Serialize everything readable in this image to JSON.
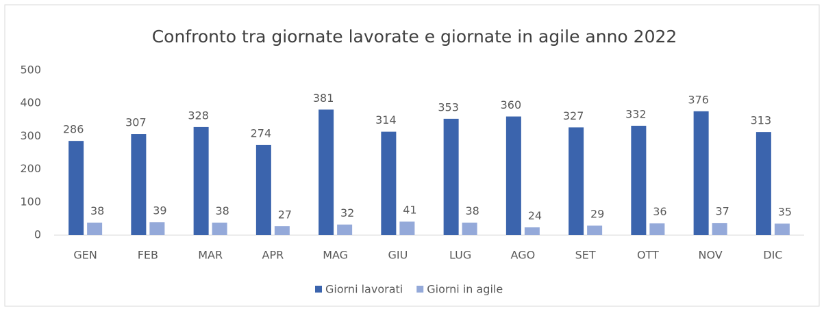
{
  "chart_data": {
    "type": "bar",
    "title": "Confronto tra giornate lavorate e giornate in agile anno 2022",
    "categories": [
      "GEN",
      "FEB",
      "MAR",
      "APR",
      "MAG",
      "GIU",
      "LUG",
      "AGO",
      "SET",
      "OTT",
      "NOV",
      "DIC"
    ],
    "series": [
      {
        "name": "Giorni lavorati",
        "color": "#3b64ad",
        "values": [
          286,
          307,
          328,
          274,
          381,
          314,
          353,
          360,
          327,
          332,
          376,
          313
        ]
      },
      {
        "name": "Giorni in agile",
        "color": "#94a9d9",
        "values": [
          38,
          39,
          38,
          27,
          32,
          41,
          38,
          24,
          29,
          36,
          37,
          35
        ]
      }
    ],
    "ylim": [
      0,
      500
    ],
    "yticks": [
      0,
      100,
      200,
      300,
      400,
      500
    ],
    "grid": false,
    "legend": "bottom"
  }
}
